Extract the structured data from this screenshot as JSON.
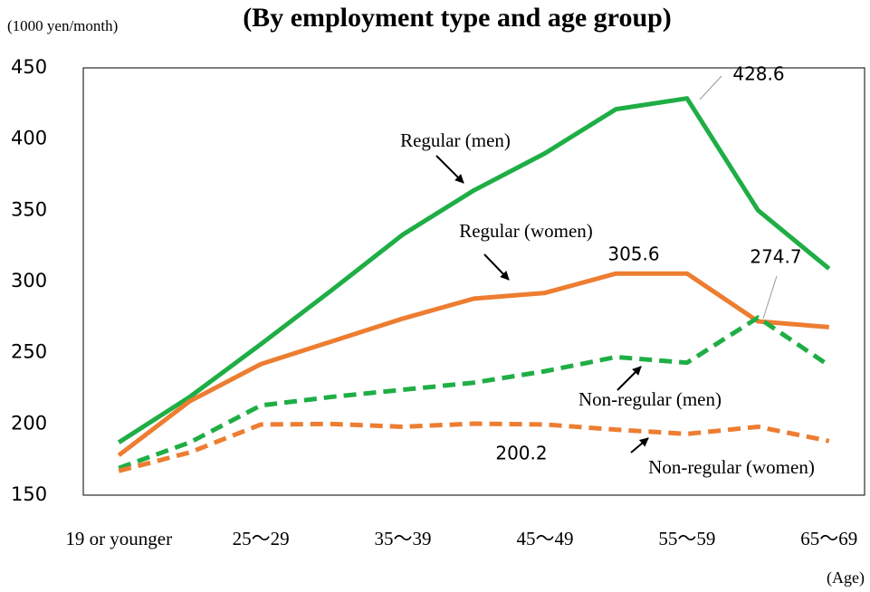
{
  "chart_data": {
    "type": "line",
    "title": "(By employment type and age group)",
    "y_axis_label": "(1000 yen/month)",
    "x_axis_label": "(Age)",
    "categories": [
      "19 or younger",
      null,
      "25〜29",
      null,
      "35〜39",
      null,
      "45〜49",
      null,
      "55〜59",
      null,
      "65〜69"
    ],
    "ylim": [
      150,
      450
    ],
    "yticks": [
      150,
      200,
      250,
      300,
      350,
      400,
      450
    ],
    "grid": false,
    "series": [
      {
        "name": "Regular (men)",
        "color": "#1fae45",
        "dashed": false,
        "values": [
          187,
          219,
          256,
          294,
          333,
          364,
          390,
          421,
          428.6,
          350,
          309
        ]
      },
      {
        "name": "Regular (women)",
        "color": "#ed7d31",
        "dashed": false,
        "values": [
          178,
          216,
          242,
          258,
          274,
          288,
          292,
          305.6,
          305.6,
          272,
          268
        ]
      },
      {
        "name": "Non-regular (men)",
        "color": "#1fae45",
        "dashed": true,
        "values": [
          169,
          187,
          213,
          219,
          224,
          229,
          237,
          247,
          243,
          274.7,
          241
        ]
      },
      {
        "name": "Non-regular (women)",
        "color": "#ed7d31",
        "dashed": true,
        "values": [
          167,
          180,
          199.6,
          200,
          198,
          200.2,
          199.6,
          196,
          193,
          198,
          188
        ]
      }
    ]
  }
}
